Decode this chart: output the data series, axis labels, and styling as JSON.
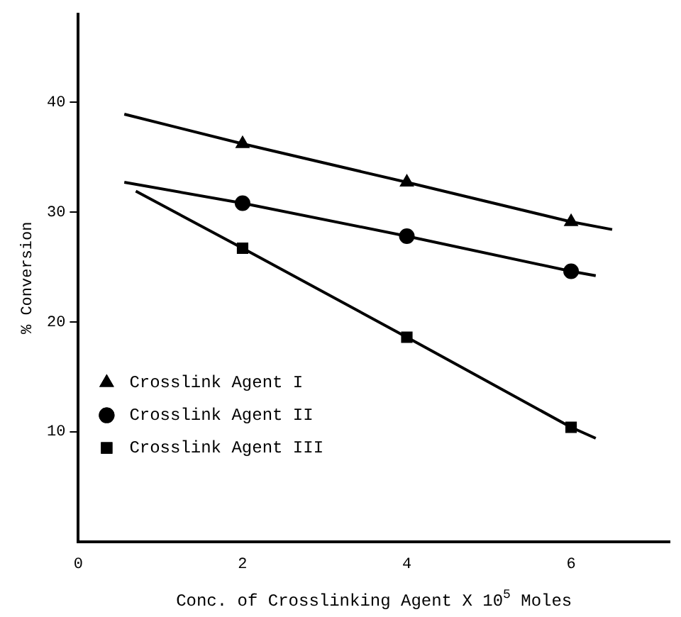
{
  "chart_data": {
    "type": "scatter",
    "xlabel": "Conc. of Crosslinking Agent X 10$^{5}$ Moles",
    "ylabel": "% Conversion",
    "xlim": [
      0,
      7.2
    ],
    "ylim": [
      0,
      48
    ],
    "xticks": [
      0,
      2,
      4,
      6
    ],
    "yticks": [
      10,
      20,
      30,
      40
    ],
    "grid": false,
    "legend": "bottom left",
    "series": [
      {
        "name": "Crosslink Agent I",
        "color": "#000000",
        "marker": "triangle",
        "x": [
          2,
          4,
          6
        ],
        "values": [
          36.2,
          32.7,
          29.1
        ]
      },
      {
        "name": "Crosslink Agent II",
        "color": "#000000",
        "marker": "circle",
        "x": [
          2,
          4,
          6
        ],
        "values": [
          30.8,
          27.8,
          24.6
        ]
      },
      {
        "name": "Crosslink Agent III",
        "color": "#000000",
        "marker": "square",
        "x": [
          2,
          4,
          6
        ],
        "values": [
          26.7,
          18.6,
          10.4
        ]
      },
      {
        "type": "line",
        "color": "#000000",
        "marker": "none",
        "x": [
          0.56,
          2,
          4,
          6,
          6.5
        ],
        "values": [
          38.9,
          36.2,
          32.7,
          29.1,
          28.4
        ]
      },
      {
        "type": "line",
        "color": "#000000",
        "marker": "none",
        "x": [
          0.56,
          2,
          4,
          6,
          6.3
        ],
        "values": [
          32.7,
          30.8,
          27.8,
          24.6,
          24.2
        ]
      },
      {
        "type": "line",
        "color": "#000000",
        "marker": "none",
        "x": [
          0.7,
          2,
          4,
          6,
          6.3
        ],
        "values": [
          31.9,
          26.7,
          18.6,
          10.4,
          9.4
        ]
      }
    ]
  }
}
